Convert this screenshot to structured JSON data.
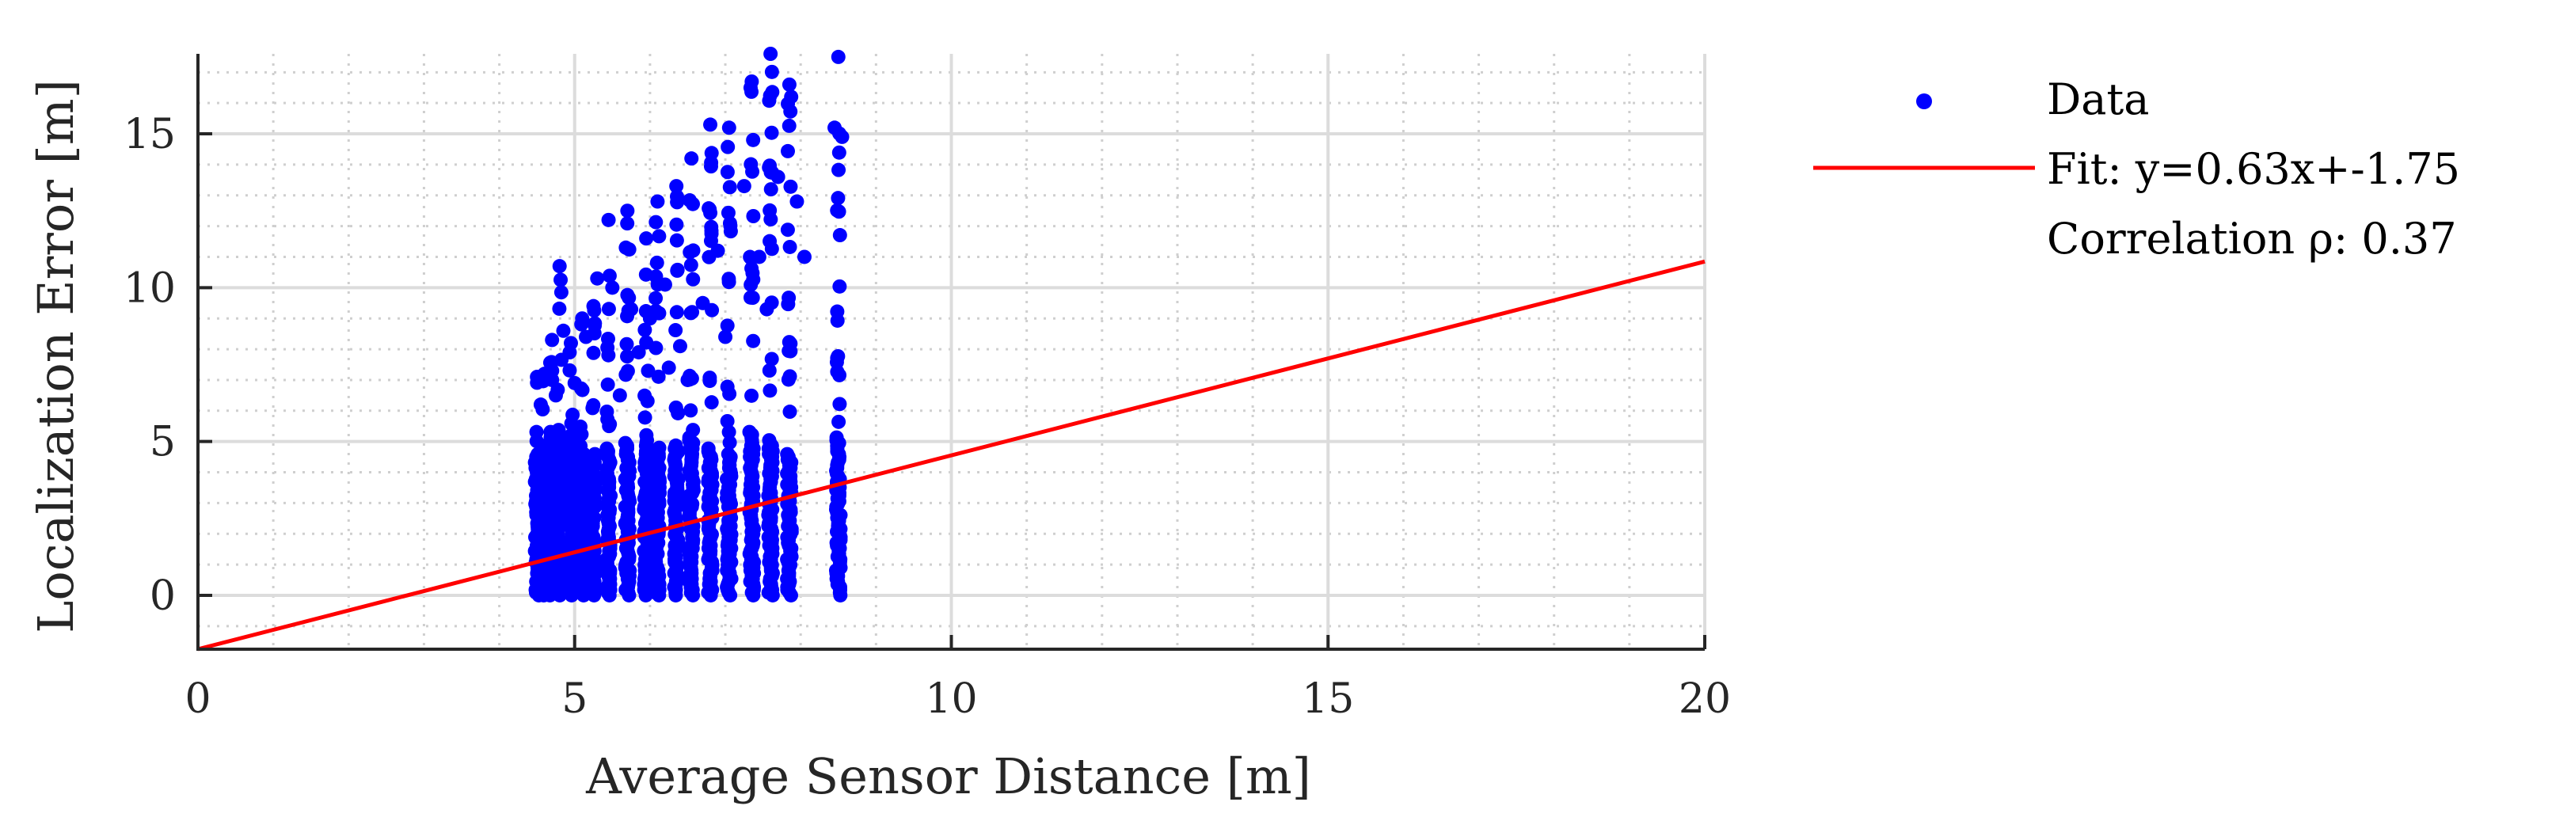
{
  "chart_data": {
    "type": "scatter",
    "xlabel": "Average Sensor Distance [m]",
    "ylabel": "Localization Error [m]",
    "xlim": [
      0,
      20
    ],
    "ylim": [
      -1.75,
      17.6
    ],
    "x_ticks": [
      "0",
      "5",
      "10",
      "15",
      "20"
    ],
    "y_ticks": [
      "0",
      "5",
      "10",
      "15"
    ],
    "x_tick_values": [
      0,
      5,
      10,
      15,
      20
    ],
    "y_tick_values": [
      0,
      5,
      10,
      15
    ],
    "grid": "major and minor",
    "legend_position": "outside right",
    "series": [
      {
        "name": "Data",
        "kind": "scatter",
        "color": "#0000ff",
        "columns": [
          {
            "x": 4.5,
            "ymax": 7.1
          },
          {
            "x": 4.6,
            "ymax": 7.2
          },
          {
            "x": 4.7,
            "ymax": 8.3
          },
          {
            "x": 4.8,
            "ymax": 10.7
          },
          {
            "x": 4.95,
            "ymax": 8.2
          },
          {
            "x": 5.1,
            "ymax": 9.0
          },
          {
            "x": 5.25,
            "ymax": 9.4
          },
          {
            "x": 5.45,
            "ymax": 12.2
          },
          {
            "x": 5.7,
            "ymax": 12.5
          },
          {
            "x": 5.95,
            "ymax": 11.6
          },
          {
            "x": 6.1,
            "ymax": 12.8
          },
          {
            "x": 6.35,
            "ymax": 13.3
          },
          {
            "x": 6.55,
            "ymax": 14.2
          },
          {
            "x": 6.8,
            "ymax": 15.3
          },
          {
            "x": 7.05,
            "ymax": 15.2
          },
          {
            "x": 7.35,
            "ymax": 16.7
          },
          {
            "x": 7.6,
            "ymax": 17.6
          },
          {
            "x": 7.85,
            "ymax": 16.6
          },
          {
            "x": 8.5,
            "ymax": 17.5
          }
        ],
        "outliers": [
          [
            4.55,
            6.2
          ],
          [
            4.75,
            6.5
          ],
          [
            4.85,
            8.6
          ],
          [
            5.0,
            6.9
          ],
          [
            5.15,
            8.4
          ],
          [
            5.3,
            10.3
          ],
          [
            5.5,
            10.0
          ],
          [
            5.6,
            6.5
          ],
          [
            5.75,
            9.3
          ],
          [
            5.85,
            7.9
          ],
          [
            6.0,
            9.0
          ],
          [
            6.2,
            10.1
          ],
          [
            6.25,
            7.4
          ],
          [
            6.4,
            8.1
          ],
          [
            6.5,
            7.0
          ],
          [
            6.7,
            9.5
          ],
          [
            6.9,
            11.2
          ],
          [
            7.0,
            8.4
          ],
          [
            7.25,
            13.3
          ],
          [
            7.45,
            11.0
          ],
          [
            7.55,
            9.3
          ],
          [
            7.7,
            13.6
          ],
          [
            7.95,
            12.8
          ],
          [
            8.05,
            11.0
          ],
          [
            8.45,
            15.2
          ],
          [
            8.55,
            14.9
          ]
        ]
      },
      {
        "name": "Fit: y=0.63x+-1.75",
        "kind": "line",
        "color": "#ff0000",
        "slope": 0.63,
        "intercept": -1.75,
        "x_range": [
          0,
          20
        ]
      }
    ],
    "legend": {
      "entries": [
        "Data",
        "Fit: y=0.63x+-1.75"
      ],
      "extra_text": "Correlation ρ: 0.37"
    }
  }
}
